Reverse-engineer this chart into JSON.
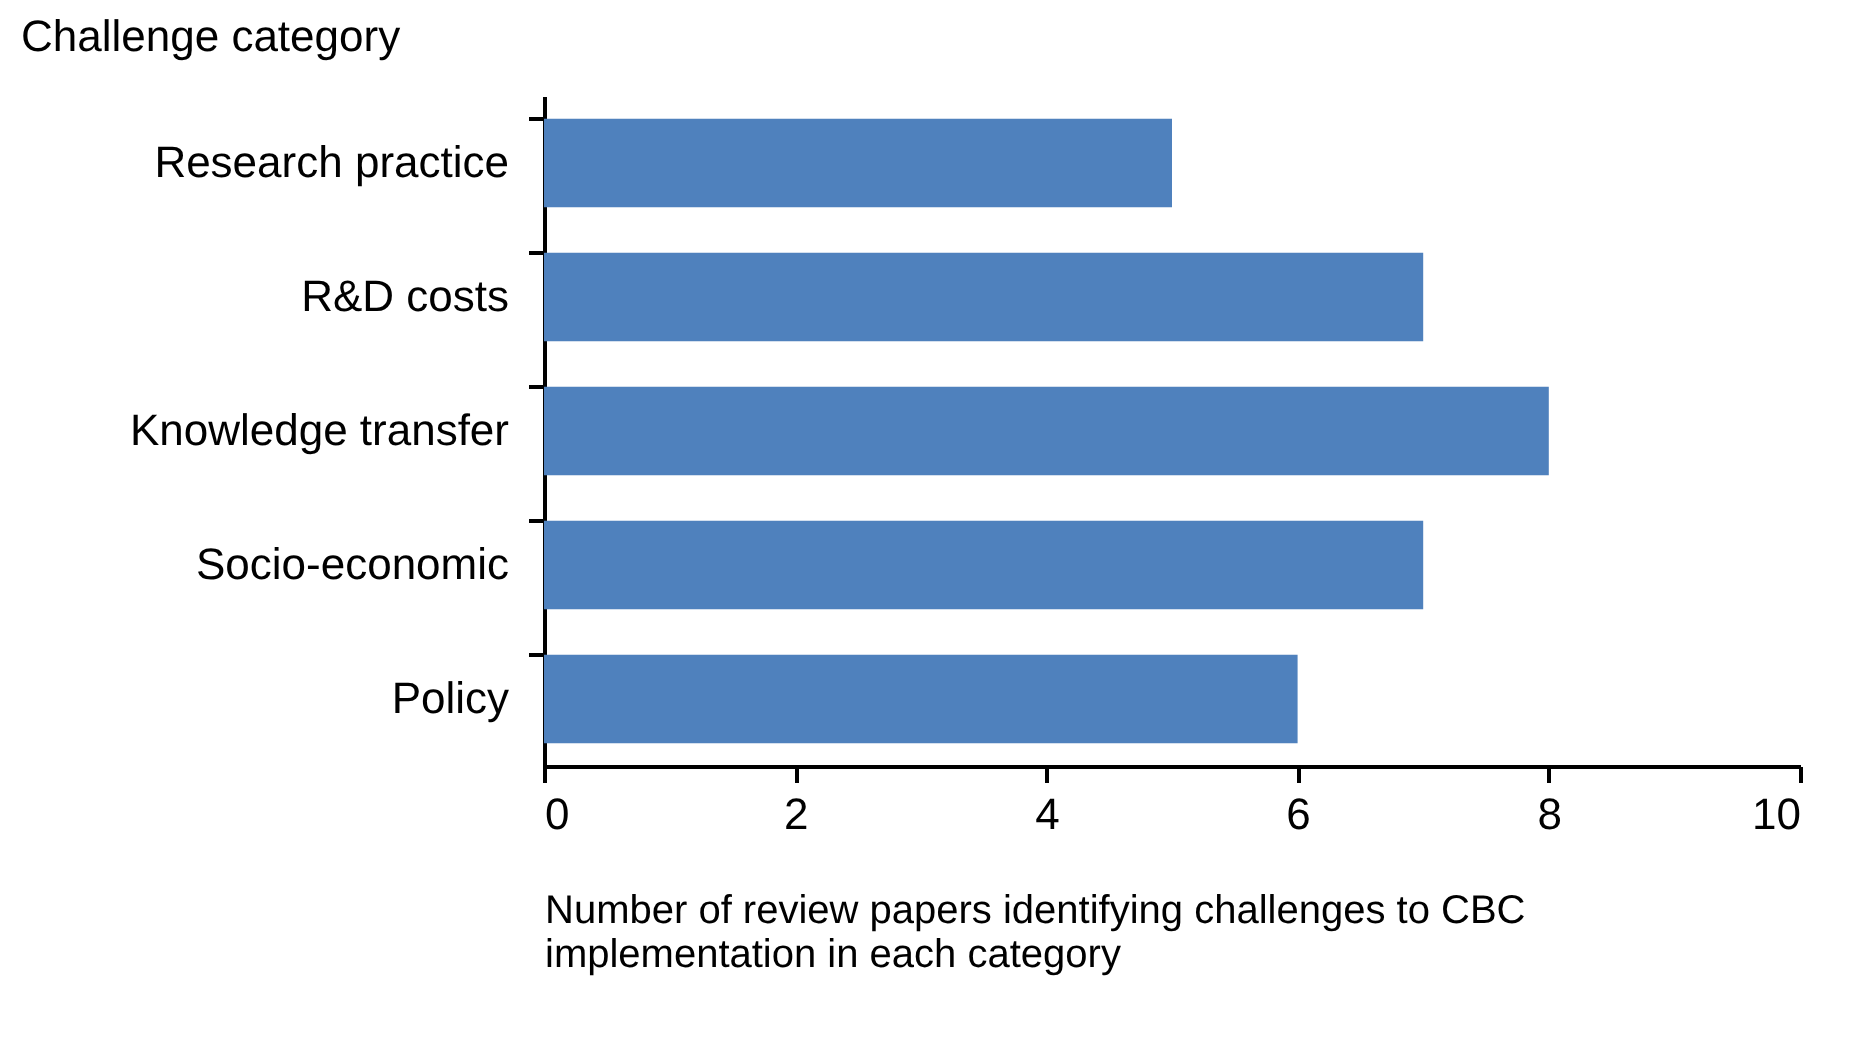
{
  "chart_data": {
    "type": "bar",
    "orientation": "horizontal",
    "ylabel": "Challenge category",
    "xlabel": "Number of review papers identifying challenges to CBC implementation in each category",
    "categories": [
      "Research practice",
      "R&D costs",
      "Knowledge transfer",
      "Socio-economic",
      "Policy"
    ],
    "values": [
      5,
      7,
      8,
      7,
      6
    ],
    "color": "#4f81bd",
    "xlim": [
      0,
      10
    ],
    "xticks": [
      0,
      2,
      4,
      6,
      8,
      10
    ],
    "grid": false
  }
}
